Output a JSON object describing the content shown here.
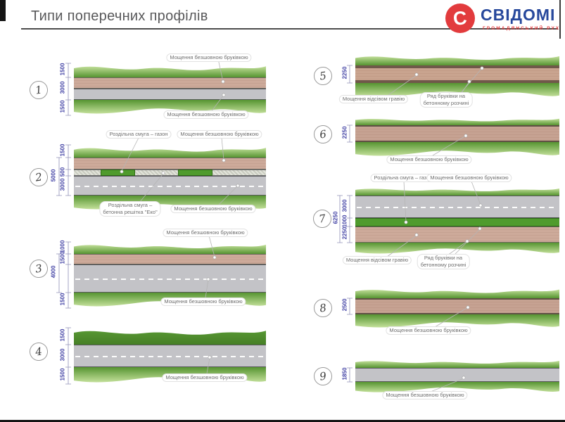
{
  "header": {
    "title": "Типи поперечних профілів",
    "brand": "СВІДОМІ",
    "tagline": "ГРОМАДЯНСЬКИЙ РУХ",
    "logo_glyph": "С"
  },
  "labels": {
    "paving_seamless": "Мощення безшовною бруківкою",
    "paving_gravel": "Мощення відсівом гравію",
    "paver_row_line1": "Ряд бруківки на",
    "paver_row_line2": "бетонному розчині",
    "divider_lawn": "Роздільна смуга – газон",
    "divider_eco_line1": "Роздільна смуга –",
    "divider_eco_line2": "бетонна решітка \"Еко\""
  },
  "colors": {
    "brand_blue": "#27489c",
    "accent_red": "#e23b3d",
    "dim_blue": "#4343a5",
    "green_light": "#c3e09a",
    "green_mid": "#7db54d",
    "green_dark": "#569431",
    "lawn_strip_green": "#4f9b2d",
    "brown_paving": "#ccaa99",
    "gravel_brown": "#c9a48f",
    "asphalt_gray": "#c3c3c7"
  },
  "profiles": [
    {
      "num": "1",
      "dims": [
        "1500",
        "3000",
        "1500"
      ]
    },
    {
      "num": "2",
      "dims": [
        "1500",
        "5000",
        "500",
        "3000"
      ]
    },
    {
      "num": "3",
      "dims": [
        "1000",
        "4000",
        "1500",
        "1500"
      ]
    },
    {
      "num": "4",
      "dims": [
        "1500",
        "3000",
        "1500"
      ]
    },
    {
      "num": "5",
      "dims": [
        "2250"
      ]
    },
    {
      "num": "6",
      "dims": [
        "2250"
      ]
    },
    {
      "num": "7",
      "dims": [
        "3000",
        "6250",
        "1000",
        "2250"
      ]
    },
    {
      "num": "8",
      "dims": [
        "2500"
      ]
    },
    {
      "num": "9",
      "dims": [
        "1850"
      ]
    }
  ]
}
